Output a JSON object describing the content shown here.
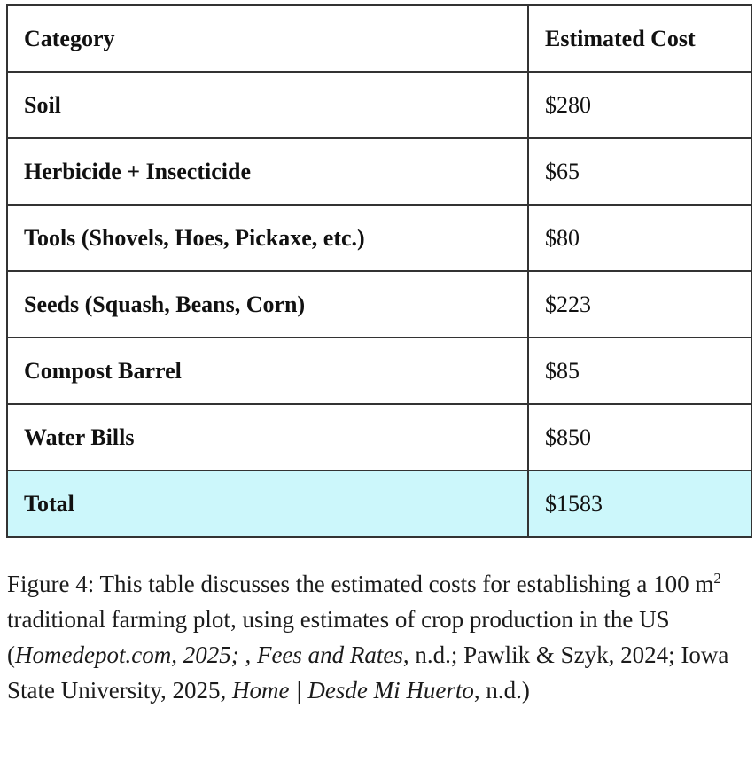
{
  "table": {
    "columns": [
      {
        "label": "Category"
      },
      {
        "label": "Estimated Cost"
      }
    ],
    "rows": [
      {
        "category": "Soil",
        "cost": "$280"
      },
      {
        "category": "Herbicide + Insecticide",
        "cost": "$65"
      },
      {
        "category": "Tools (Shovels, Hoes, Pickaxe, etc.)",
        "cost": "$80"
      },
      {
        "category": "Seeds (Squash, Beans, Corn)",
        "cost": "$223"
      },
      {
        "category": "Compost Barrel",
        "cost": "$85"
      },
      {
        "category": "Water Bills",
        "cost": "$850"
      }
    ],
    "total": {
      "category": "Total",
      "cost": "$1583"
    },
    "colors": {
      "total_row_highlight": "#ccf7fb",
      "border": "#333333",
      "text": "#111111"
    }
  },
  "caption": {
    "segments": [
      {
        "text": "Figure 4: This table discusses the estimated costs for establishing a 100 m",
        "style": "normal"
      },
      {
        "text": "2",
        "style": "superscript"
      },
      {
        "text": " traditional farming plot, using estimates of crop production in the US (",
        "style": "normal"
      },
      {
        "text": "Homedepot.com, 2025;",
        "style": "italic"
      },
      {
        "text": " , ",
        "style": "normal"
      },
      {
        "text": "Fees and Rates",
        "style": "italic"
      },
      {
        "text": ", n.d.; Pawlik & Szyk, 2024; Iowa State University, 2025, ",
        "style": "normal"
      },
      {
        "text": "Home | Desde Mi Huerto",
        "style": "italic"
      },
      {
        "text": ", n.d.)",
        "style": "normal"
      }
    ]
  },
  "chart_data": {
    "type": "table",
    "title": "Estimated costs for establishing a 100 m2 traditional farming plot",
    "columns": [
      "Category",
      "Estimated Cost"
    ],
    "rows": [
      [
        "Soil",
        280
      ],
      [
        "Herbicide + Insecticide",
        65
      ],
      [
        "Tools (Shovels, Hoes, Pickaxe, etc.)",
        80
      ],
      [
        "Seeds (Squash, Beans, Corn)",
        223
      ],
      [
        "Compost Barrel",
        85
      ],
      [
        "Water Bills",
        850
      ],
      [
        "Total",
        1583
      ]
    ]
  }
}
